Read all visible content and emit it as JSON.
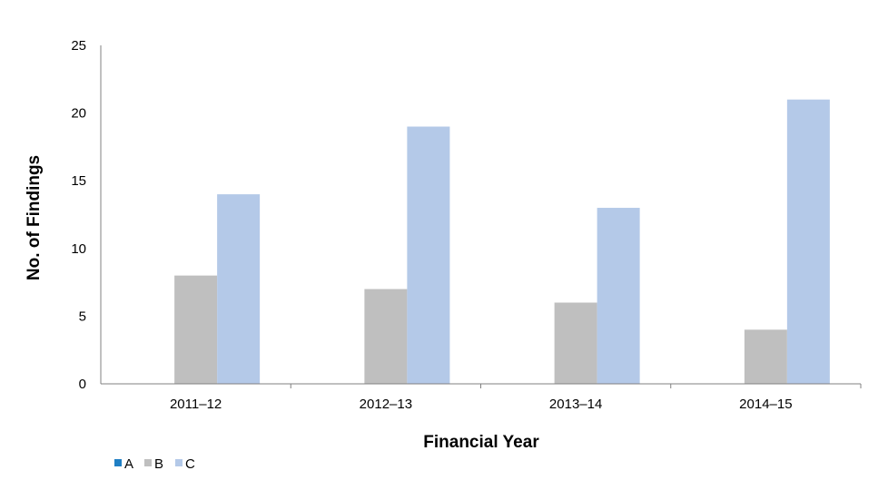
{
  "chart_data": {
    "type": "bar",
    "title": "",
    "xlabel": "Financial Year",
    "ylabel": "No. of Findings",
    "categories": [
      "2011–12",
      "2012–13",
      "2013–14",
      "2014–15"
    ],
    "series": [
      {
        "name": "A",
        "values": [
          0,
          0,
          0,
          0
        ],
        "color": "#1f7fc4"
      },
      {
        "name": "B",
        "values": [
          8,
          7,
          6,
          4
        ],
        "color": "#bfbfbf"
      },
      {
        "name": "C",
        "values": [
          14,
          19,
          13,
          21
        ],
        "color": "#b4c9e8"
      }
    ],
    "ylim": [
      0,
      25
    ],
    "yticks": [
      0,
      5,
      10,
      15,
      20,
      25
    ],
    "grid": false,
    "legend_position": "bottom-left",
    "axis_color": "#808080"
  }
}
